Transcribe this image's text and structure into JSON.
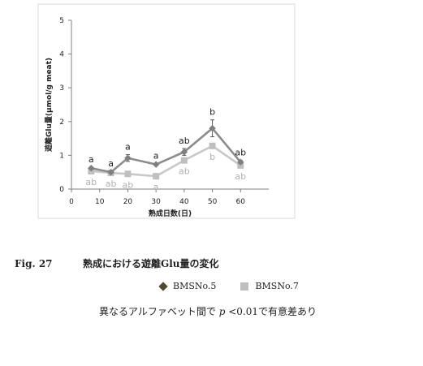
{
  "chart_data": {
    "type": "line",
    "xlabel": "熟成日数(日)",
    "ylabel": "遊離Glu量(µmol/g meat)",
    "xlim": [
      0,
      70
    ],
    "ylim": [
      0,
      5
    ],
    "x_ticks": [
      0,
      10,
      20,
      30,
      40,
      50,
      60
    ],
    "y_ticks": [
      0,
      1,
      2,
      3,
      4,
      5
    ],
    "grid": false,
    "legend": "below",
    "series": [
      {
        "name": "BMSNo.5",
        "marker": "diamond",
        "color": "#8c8c8c",
        "marker_color": "#7f7f7f",
        "label_color": "#222222",
        "x": [
          7,
          14,
          20,
          30,
          40,
          50,
          60
        ],
        "y": [
          0.62,
          0.5,
          0.92,
          0.73,
          1.1,
          1.8,
          0.8
        ],
        "error": [
          0.03,
          0.03,
          0.1,
          0.03,
          0.1,
          0.25,
          0.05
        ],
        "sig": [
          "a",
          "a",
          "a",
          "a",
          "ab",
          "b",
          "ab"
        ]
      },
      {
        "name": "BMSNo.7",
        "marker": "square",
        "color": "#c8c8c8",
        "marker_color": "#bfbfbf",
        "label_color": "#b0b0b0",
        "x": [
          7,
          14,
          20,
          30,
          40,
          50,
          60
        ],
        "y": [
          0.53,
          0.48,
          0.45,
          0.38,
          0.85,
          1.28,
          0.7
        ],
        "error": [
          0.02,
          0.02,
          0.02,
          0.02,
          0.03,
          0.04,
          0.03
        ],
        "sig": [
          "ab",
          "ab",
          "ab",
          "a",
          "ab",
          "b",
          "ab"
        ]
      }
    ]
  },
  "caption": {
    "fig_label": "Fig. 27",
    "text": "熟成における遊離Glu量の変化"
  },
  "legend": {
    "items": [
      "BMSNo.5",
      "BMSNo.7"
    ]
  },
  "note": {
    "before": "異なるアルファベット間で",
    "p": "p",
    "after": "<0.01で有意差あり"
  }
}
